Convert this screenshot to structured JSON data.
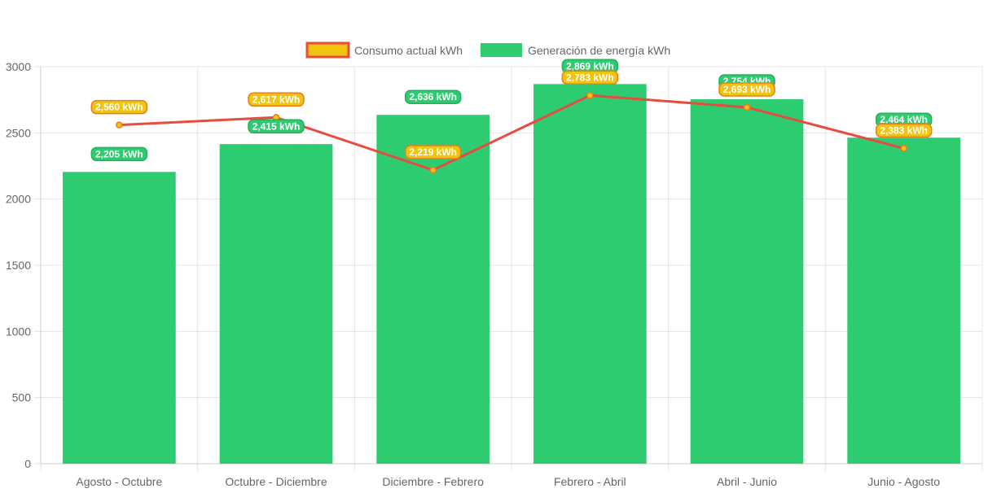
{
  "colors": {
    "bar_fill": "#2ecc71",
    "line_stroke": "#e74c3c",
    "line_point_fill": "#f1c40f",
    "consumption_label_fill": "#f1c40f",
    "consumption_label_border": "#e67e22",
    "generation_label_fill": "#2ecc71",
    "generation_label_border": "#27ae60",
    "grid": "#e5e5e5",
    "axis_text": "#666666"
  },
  "chart_data": {
    "type": "bar",
    "categories": [
      "Agosto - Octubre",
      "Octubre - Diciembre",
      "Diciembre - Febrero",
      "Febrero - Abril",
      "Abril - Junio",
      "Junio - Agosto"
    ],
    "series": [
      {
        "name": "Consumo actual kWh",
        "type": "line",
        "values": [
          2560,
          2617,
          2219,
          2783,
          2693,
          2383
        ],
        "labels": [
          "2,560 kWh",
          "2,617 kWh",
          "2,219 kWh",
          "2,783 kWh",
          "2,693 kWh",
          "2,383 kWh"
        ]
      },
      {
        "name": "Generación de energía kWh",
        "type": "bar",
        "values": [
          2205,
          2415,
          2636,
          2869,
          2754,
          2464
        ],
        "labels": [
          "2,205 kWh",
          "2,415 kWh",
          "2,636 kWh",
          "2,869 kWh",
          "2,754 kWh",
          "2,464 kWh"
        ]
      }
    ],
    "ylim": [
      0,
      3000
    ],
    "yticks": [
      "0",
      "500",
      "1000",
      "1500",
      "2000",
      "2500",
      "3000"
    ],
    "title": "",
    "xlabel": "",
    "ylabel": "",
    "grid": true,
    "legend_position": "top-center"
  }
}
